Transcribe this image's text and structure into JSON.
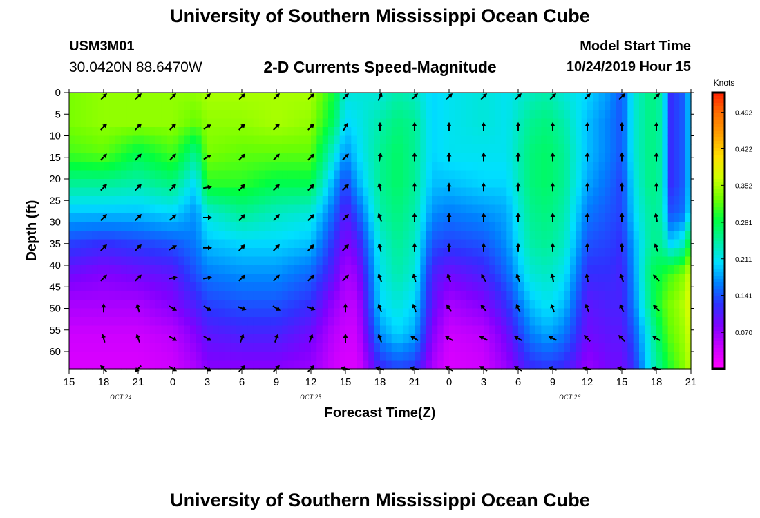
{
  "page": {
    "title_top": "University of Southern Mississippi Ocean Cube",
    "title_bottom": "University of Southern Mississippi Ocean Cube",
    "station_id": "USM3M01",
    "coordinates": "30.0420N 88.6470W",
    "plot_title": "2-D Currents Speed-Magnitude",
    "model_start_label": "Model Start Time",
    "model_start_value": "10/24/2019 Hour 15"
  },
  "colors": {
    "colormap": [
      "#ff00ff",
      "#cc00ff",
      "#8000ff",
      "#3030ff",
      "#0080ff",
      "#00e0ff",
      "#00f0a0",
      "#00ff40",
      "#70ff00",
      "#d0ff00",
      "#ffe000",
      "#ffa000",
      "#ff7000",
      "#ff2000"
    ]
  },
  "chart_data": {
    "type": "heatmap",
    "xlabel": "Forecast Time(Z)",
    "ylabel": "Depth (ft)",
    "colorbar_unit": "Knots",
    "colorbar_range": [
      0,
      0.53
    ],
    "colorbar_ticks": [
      {
        "value": 0.07,
        "label": "0.070"
      },
      {
        "value": 0.141,
        "label": "0.141"
      },
      {
        "value": 0.211,
        "label": "0.211"
      },
      {
        "value": 0.281,
        "label": "0.281"
      },
      {
        "value": 0.352,
        "label": "0.352"
      },
      {
        "value": 0.422,
        "label": "0.422"
      },
      {
        "value": 0.492,
        "label": "0.492"
      }
    ],
    "x_range_hours": [
      0,
      54
    ],
    "x_ticks": [
      {
        "hour": 0,
        "label": "15"
      },
      {
        "hour": 3,
        "label": "18"
      },
      {
        "hour": 6,
        "label": "21"
      },
      {
        "hour": 9,
        "label": "0"
      },
      {
        "hour": 12,
        "label": "3"
      },
      {
        "hour": 15,
        "label": "6"
      },
      {
        "hour": 18,
        "label": "9"
      },
      {
        "hour": 21,
        "label": "12"
      },
      {
        "hour": 24,
        "label": "15"
      },
      {
        "hour": 27,
        "label": "18"
      },
      {
        "hour": 30,
        "label": "21"
      },
      {
        "hour": 33,
        "label": "0"
      },
      {
        "hour": 36,
        "label": "3"
      },
      {
        "hour": 39,
        "label": "6"
      },
      {
        "hour": 42,
        "label": "9"
      },
      {
        "hour": 45,
        "label": "12"
      },
      {
        "hour": 48,
        "label": "15"
      },
      {
        "hour": 51,
        "label": "18"
      },
      {
        "hour": 54,
        "label": "21"
      }
    ],
    "date_labels": [
      {
        "hour": 4.5,
        "label": "OCT 24"
      },
      {
        "hour": 21,
        "label": "OCT 25"
      },
      {
        "hour": 43.5,
        "label": "OCT 26"
      }
    ],
    "y_range_ft": [
      0,
      64
    ],
    "y_ticks": [
      0,
      5,
      10,
      15,
      20,
      25,
      30,
      35,
      40,
      45,
      50,
      55,
      60
    ],
    "arrow_hours": [
      3,
      6,
      9,
      12,
      15,
      18,
      21,
      24,
      27,
      30,
      33,
      36,
      39,
      42,
      45,
      48,
      51
    ],
    "arrow_depths": [
      0,
      7,
      14,
      21,
      28,
      35,
      42,
      49,
      56,
      63
    ],
    "speed_profiles": [
      {
        "hour": 0,
        "speeds": [
          0.33,
          0.33,
          0.31,
          0.25,
          0.19,
          0.13,
          0.09,
          0.06,
          0.04,
          0.03
        ]
      },
      {
        "hour": 3,
        "speeds": [
          0.34,
          0.34,
          0.32,
          0.25,
          0.19,
          0.12,
          0.08,
          0.06,
          0.04,
          0.03
        ]
      },
      {
        "hour": 6,
        "speeds": [
          0.34,
          0.34,
          0.28,
          0.24,
          0.19,
          0.13,
          0.09,
          0.06,
          0.04,
          0.03
        ]
      },
      {
        "hour": 9,
        "speeds": [
          0.34,
          0.34,
          0.31,
          0.26,
          0.2,
          0.14,
          0.1,
          0.08,
          0.05,
          0.04
        ]
      },
      {
        "hour": 11,
        "speeds": [
          0.34,
          0.32,
          0.25,
          0.2,
          0.17,
          0.16,
          0.14,
          0.11,
          0.08,
          0.06
        ]
      },
      {
        "hour": 12,
        "speeds": [
          0.35,
          0.34,
          0.33,
          0.3,
          0.22,
          0.19,
          0.16,
          0.13,
          0.1,
          0.08
        ]
      },
      {
        "hour": 15,
        "speeds": [
          0.35,
          0.34,
          0.32,
          0.3,
          0.25,
          0.2,
          0.17,
          0.14,
          0.11,
          0.08
        ]
      },
      {
        "hour": 18,
        "speeds": [
          0.35,
          0.35,
          0.32,
          0.28,
          0.23,
          0.2,
          0.17,
          0.14,
          0.11,
          0.08
        ]
      },
      {
        "hour": 21,
        "speeds": [
          0.35,
          0.34,
          0.32,
          0.28,
          0.22,
          0.19,
          0.15,
          0.12,
          0.09,
          0.07
        ]
      },
      {
        "hour": 23,
        "speeds": [
          0.29,
          0.27,
          0.22,
          0.18,
          0.15,
          0.12,
          0.1,
          0.07,
          0.05,
          0.04
        ]
      },
      {
        "hour": 24,
        "speeds": [
          0.22,
          0.2,
          0.17,
          0.13,
          0.1,
          0.08,
          0.06,
          0.05,
          0.04,
          0.03
        ]
      },
      {
        "hour": 25,
        "speeds": [
          0.22,
          0.21,
          0.2,
          0.18,
          0.14,
          0.1,
          0.07,
          0.05,
          0.04,
          0.03
        ]
      },
      {
        "hour": 27,
        "speeds": [
          0.22,
          0.24,
          0.25,
          0.25,
          0.24,
          0.22,
          0.21,
          0.2,
          0.17,
          0.12
        ]
      },
      {
        "hour": 28.5,
        "speeds": [
          0.24,
          0.26,
          0.27,
          0.27,
          0.26,
          0.25,
          0.24,
          0.22,
          0.2,
          0.14
        ]
      },
      {
        "hour": 30,
        "speeds": [
          0.23,
          0.25,
          0.25,
          0.25,
          0.24,
          0.23,
          0.22,
          0.2,
          0.18,
          0.13
        ]
      },
      {
        "hour": 31.5,
        "speeds": [
          0.2,
          0.2,
          0.2,
          0.19,
          0.17,
          0.14,
          0.11,
          0.1,
          0.08,
          0.06
        ]
      },
      {
        "hour": 33,
        "speeds": [
          0.21,
          0.21,
          0.21,
          0.19,
          0.16,
          0.13,
          0.09,
          0.06,
          0.04,
          0.03
        ]
      },
      {
        "hour": 36,
        "speeds": [
          0.22,
          0.22,
          0.21,
          0.2,
          0.17,
          0.14,
          0.11,
          0.08,
          0.05,
          0.04
        ]
      },
      {
        "hour": 38,
        "speeds": [
          0.21,
          0.21,
          0.21,
          0.2,
          0.18,
          0.17,
          0.15,
          0.12,
          0.09,
          0.07
        ]
      },
      {
        "hour": 40,
        "speeds": [
          0.23,
          0.25,
          0.26,
          0.26,
          0.25,
          0.24,
          0.22,
          0.19,
          0.16,
          0.12
        ]
      },
      {
        "hour": 41.5,
        "speeds": [
          0.24,
          0.26,
          0.27,
          0.27,
          0.26,
          0.25,
          0.23,
          0.21,
          0.18,
          0.13
        ]
      },
      {
        "hour": 43,
        "speeds": [
          0.22,
          0.24,
          0.25,
          0.25,
          0.24,
          0.23,
          0.21,
          0.19,
          0.16,
          0.12
        ]
      },
      {
        "hour": 45,
        "speeds": [
          0.2,
          0.19,
          0.19,
          0.18,
          0.16,
          0.14,
          0.12,
          0.1,
          0.09,
          0.07
        ]
      },
      {
        "hour": 47,
        "speeds": [
          0.17,
          0.16,
          0.16,
          0.15,
          0.14,
          0.13,
          0.12,
          0.11,
          0.1,
          0.09
        ]
      },
      {
        "hour": 48,
        "speeds": [
          0.14,
          0.14,
          0.14,
          0.13,
          0.13,
          0.12,
          0.11,
          0.11,
          0.1,
          0.09
        ]
      },
      {
        "hour": 49,
        "speeds": [
          0.22,
          0.22,
          0.22,
          0.21,
          0.2,
          0.18,
          0.17,
          0.16,
          0.14,
          0.12
        ]
      },
      {
        "hour": 50.5,
        "speeds": [
          0.26,
          0.26,
          0.26,
          0.26,
          0.25,
          0.25,
          0.27,
          0.26,
          0.23,
          0.22
        ]
      },
      {
        "hour": 51.5,
        "speeds": [
          0.24,
          0.24,
          0.24,
          0.24,
          0.24,
          0.25,
          0.29,
          0.31,
          0.29,
          0.27
        ]
      },
      {
        "hour": 52.2,
        "speeds": [
          0.12,
          0.12,
          0.12,
          0.12,
          0.14,
          0.2,
          0.31,
          0.33,
          0.32,
          0.3
        ]
      },
      {
        "hour": 53.2,
        "speeds": [
          0.14,
          0.14,
          0.14,
          0.14,
          0.15,
          0.22,
          0.33,
          0.35,
          0.34,
          0.33
        ]
      },
      {
        "hour": 54,
        "speeds": [
          0.2,
          0.2,
          0.2,
          0.2,
          0.21,
          0.3,
          0.37,
          0.38,
          0.37,
          0.36
        ]
      }
    ],
    "arrow_directions_deg": [
      [
        225,
        225,
        225,
        225,
        225,
        225,
        225,
        225,
        202,
        225,
        225,
        225,
        225,
        225,
        225,
        225,
        225
      ],
      [
        225,
        225,
        225,
        240,
        225,
        225,
        225,
        210,
        180,
        180,
        180,
        180,
        180,
        180,
        180,
        180,
        180
      ],
      [
        225,
        225,
        225,
        240,
        225,
        225,
        225,
        225,
        190,
        180,
        180,
        180,
        180,
        180,
        180,
        180,
        180
      ],
      [
        225,
        225,
        225,
        260,
        225,
        225,
        225,
        225,
        165,
        180,
        180,
        180,
        180,
        180,
        180,
        180,
        180
      ],
      [
        225,
        225,
        230,
        270,
        225,
        225,
        225,
        225,
        160,
        180,
        180,
        180,
        180,
        180,
        180,
        180,
        170
      ],
      [
        225,
        225,
        240,
        270,
        225,
        225,
        225,
        225,
        165,
        180,
        180,
        180,
        180,
        180,
        180,
        180,
        160
      ],
      [
        225,
        225,
        260,
        260,
        225,
        225,
        225,
        225,
        160,
        165,
        160,
        150,
        160,
        170,
        170,
        160,
        135
      ],
      [
        180,
        165,
        300,
        300,
        290,
        300,
        290,
        180,
        160,
        160,
        145,
        140,
        155,
        160,
        160,
        155,
        135
      ],
      [
        165,
        160,
        300,
        300,
        200,
        200,
        200,
        180,
        160,
        120,
        120,
        115,
        120,
        115,
        135,
        135,
        120
      ],
      [
        135,
        45,
        300,
        300,
        225,
        225,
        225,
        100,
        105,
        100,
        120,
        120,
        120,
        110,
        100,
        100,
        100
      ]
    ]
  }
}
